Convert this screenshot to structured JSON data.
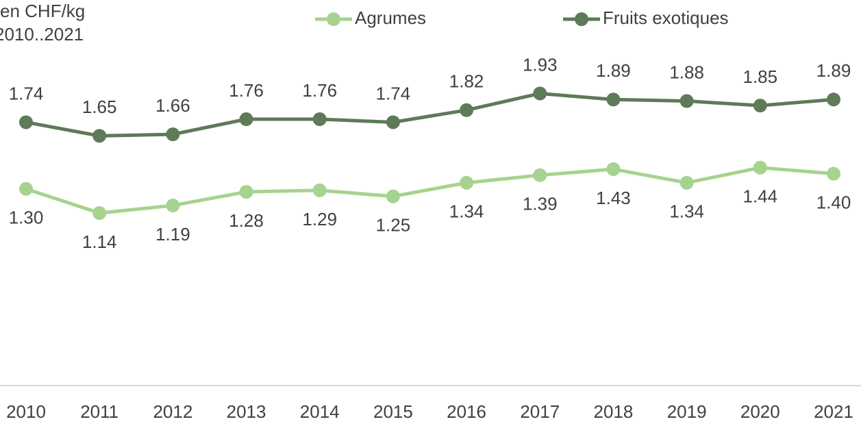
{
  "chart_data": {
    "type": "line",
    "title": "en CHF/kg",
    "subtitle": "2010..2021",
    "categories": [
      "2010",
      "2011",
      "2012",
      "2013",
      "2014",
      "2015",
      "2016",
      "2017",
      "2018",
      "2019",
      "2020",
      "2021"
    ],
    "series": [
      {
        "name": "Agrumes",
        "color": "#a6d38f",
        "values": [
          1.3,
          1.14,
          1.19,
          1.28,
          1.29,
          1.25,
          1.34,
          1.39,
          1.43,
          1.34,
          1.44,
          1.4
        ],
        "value_labels": [
          "1.30",
          "1.14",
          "1.19",
          "1.28",
          "1.29",
          "1.25",
          "1.34",
          "1.39",
          "1.43",
          "1.34",
          "1.44",
          "1.40"
        ]
      },
      {
        "name": "Fruits exotiques",
        "color": "#5e7a57",
        "values": [
          1.74,
          1.65,
          1.66,
          1.76,
          1.76,
          1.74,
          1.82,
          1.93,
          1.89,
          1.88,
          1.85,
          1.89
        ],
        "value_labels": [
          "1.74",
          "1.65",
          "1.66",
          "1.76",
          "1.76",
          "1.74",
          "1.82",
          "1.93",
          "1.89",
          "1.88",
          "1.85",
          "1.89"
        ]
      }
    ],
    "ylim": [
      0,
      2.5
    ],
    "grid": false,
    "legend": "top"
  }
}
